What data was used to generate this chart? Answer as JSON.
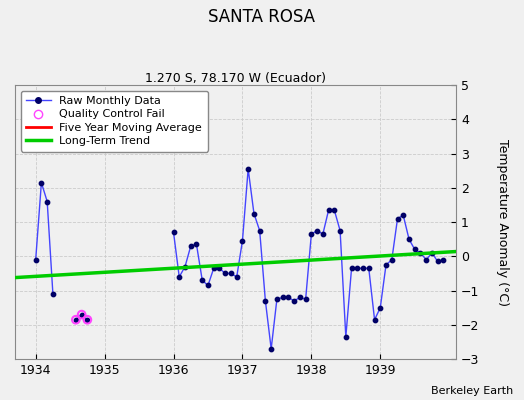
{
  "title": "SANTA ROSA",
  "subtitle": "1.270 S, 78.170 W (Ecuador)",
  "ylabel": "Temperature Anomaly (°C)",
  "attribution": "Berkeley Earth",
  "xlim": [
    1933.7,
    1940.1
  ],
  "ylim": [
    -3,
    5
  ],
  "yticks": [
    -3,
    -2,
    -1,
    0,
    1,
    2,
    3,
    4,
    5
  ],
  "xticks": [
    1934,
    1935,
    1936,
    1937,
    1938,
    1939
  ],
  "background_color": "#f0f0f0",
  "raw_segments": [
    [
      [
        1934.0,
        -0.1
      ],
      [
        1934.083,
        2.15
      ],
      [
        1934.167,
        1.6
      ],
      [
        1934.25,
        -1.1
      ]
    ],
    [
      [
        1934.583,
        -1.85
      ],
      [
        1934.667,
        -1.7
      ],
      [
        1934.75,
        -1.85
      ]
    ],
    [
      [
        1936.0,
        0.7
      ],
      [
        1936.083,
        -0.6
      ],
      [
        1936.167,
        -0.3
      ],
      [
        1936.25,
        0.3
      ],
      [
        1936.333,
        0.35
      ],
      [
        1936.417,
        -0.7
      ],
      [
        1936.5,
        -0.85
      ],
      [
        1936.583,
        -0.35
      ],
      [
        1936.667,
        -0.35
      ],
      [
        1936.75,
        -0.5
      ],
      [
        1936.833,
        -0.5
      ],
      [
        1936.917,
        -0.6
      ],
      [
        1937.0,
        0.45
      ],
      [
        1937.083,
        2.55
      ],
      [
        1937.167,
        1.25
      ],
      [
        1937.25,
        0.75
      ],
      [
        1937.333,
        -1.3
      ],
      [
        1937.417,
        -2.7
      ],
      [
        1937.5,
        -1.25
      ],
      [
        1937.583,
        -1.2
      ],
      [
        1937.667,
        -1.2
      ],
      [
        1937.75,
        -1.3
      ],
      [
        1937.833,
        -1.2
      ],
      [
        1937.917,
        -1.25
      ],
      [
        1938.0,
        0.65
      ],
      [
        1938.083,
        0.75
      ],
      [
        1938.167,
        0.65
      ],
      [
        1938.25,
        1.35
      ],
      [
        1938.333,
        1.35
      ],
      [
        1938.417,
        0.75
      ],
      [
        1938.5,
        -2.35
      ],
      [
        1938.583,
        -0.35
      ],
      [
        1938.667,
        -0.35
      ],
      [
        1938.75,
        -0.35
      ],
      [
        1938.833,
        -0.35
      ],
      [
        1938.917,
        -1.85
      ],
      [
        1939.0,
        -1.5
      ],
      [
        1939.083,
        -0.25
      ],
      [
        1939.167,
        -0.1
      ],
      [
        1939.25,
        1.1
      ],
      [
        1939.333,
        1.2
      ],
      [
        1939.417,
        0.5
      ],
      [
        1939.5,
        0.2
      ],
      [
        1939.583,
        0.1
      ],
      [
        1939.667,
        -0.1
      ],
      [
        1939.75,
        0.1
      ],
      [
        1939.833,
        -0.15
      ],
      [
        1939.917,
        -0.1
      ]
    ]
  ],
  "qc_fail_points": [
    [
      1934.583,
      -1.85
    ],
    [
      1934.667,
      -1.7
    ],
    [
      1934.75,
      -1.85
    ]
  ],
  "trend_x": [
    1933.7,
    1940.1
  ],
  "trend_y": [
    -0.62,
    0.14
  ],
  "raw_line_color": "#4444ff",
  "raw_marker_color": "#000066",
  "trend_color": "#00cc00",
  "ma_color": "#ff0000",
  "qc_color": "#ff44ff",
  "legend_loc": "upper left",
  "title_fontsize": 12,
  "subtitle_fontsize": 9,
  "tick_fontsize": 9,
  "ylabel_fontsize": 9
}
